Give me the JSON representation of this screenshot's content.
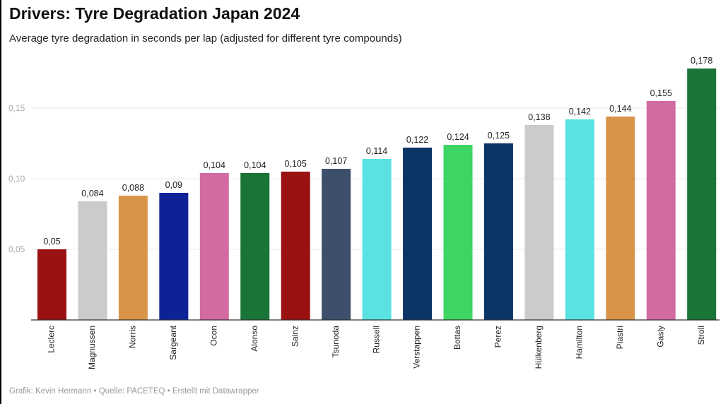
{
  "title": "Drivers: Tyre Degradation Japan 2024",
  "subtitle": "Average tyre degradation in seconds per lap (adjusted for different tyre compounds)",
  "footer": "Grafik: Kevin Hermann • Quelle: PACETEQ • Erstellt mit Datawrapper",
  "chart_data": {
    "type": "bar",
    "title": "Drivers: Tyre Degradation Japan 2024",
    "subtitle": "Average tyre degradation in seconds per lap (adjusted for different tyre compounds)",
    "categories": [
      "Leclerc",
      "Magnussen",
      "Norris",
      "Sargeant",
      "Ocon",
      "Alonso",
      "Sainz",
      "Tsunoda",
      "Russell",
      "Verstappen",
      "Bottas",
      "Perez",
      "Hülkenberg",
      "Hamilton",
      "Piastri",
      "Gasly",
      "Stroll"
    ],
    "values": [
      0.05,
      0.084,
      0.088,
      0.09,
      0.104,
      0.104,
      0.105,
      0.107,
      0.114,
      0.122,
      0.124,
      0.125,
      0.138,
      0.142,
      0.144,
      0.155,
      0.178
    ],
    "value_labels": [
      "0,05",
      "0,084",
      "0,088",
      "0,09",
      "0,104",
      "0,104",
      "0,105",
      "0,107",
      "0,114",
      "0,122",
      "0,124",
      "0,125",
      "0,138",
      "0,142",
      "0,144",
      "0,155",
      "0,178"
    ],
    "colors": [
      "#9a1111",
      "#cccaca",
      "#d8954a",
      "#0e2297",
      "#d16ba0",
      "#1a7337",
      "#9a1111",
      "#3d4f6b",
      "#5ae2e3",
      "#0c3567",
      "#3fd565",
      "#0c3567",
      "#cccaca",
      "#5ae2e3",
      "#d8954a",
      "#d16ba0",
      "#1a7337"
    ],
    "y_ticks": [
      0.05,
      0.1,
      0.15
    ],
    "y_tick_labels": [
      "0,05",
      "0,10",
      "0,15"
    ],
    "ylim": [
      0,
      0.18
    ],
    "xlabel": "",
    "ylabel": "",
    "grid": true,
    "legend": "none"
  }
}
